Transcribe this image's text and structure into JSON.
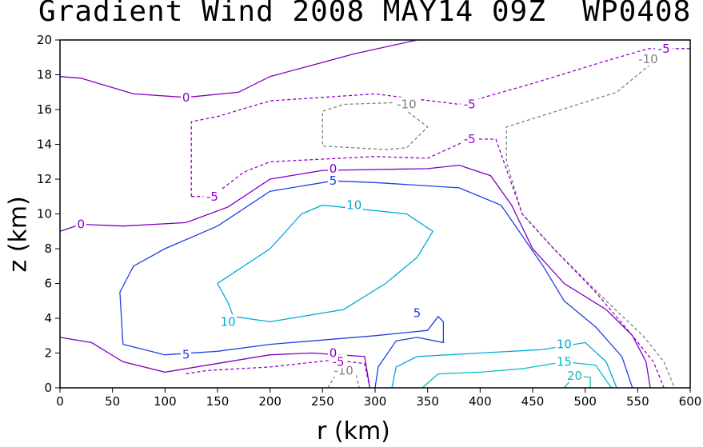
{
  "chart_data": {
    "type": "contour",
    "title": "Gradient Wind 2008 MAY14 09Z  WP0408",
    "xlabel": "r (km)",
    "ylabel": "z (km)",
    "xlim": [
      0,
      600
    ],
    "ylim": [
      0,
      20
    ],
    "xticks": [
      0,
      50,
      100,
      150,
      200,
      250,
      300,
      350,
      400,
      450,
      500,
      550,
      600
    ],
    "yticks": [
      0,
      2,
      4,
      6,
      8,
      10,
      12,
      14,
      16,
      18,
      20
    ],
    "contours": [
      {
        "level": -10,
        "color": "#808080",
        "style": "dashed",
        "label_text": "-10",
        "lines": [
          [
            [
              250,
              14
            ],
            [
              250,
              15.9
            ],
            [
              270,
              16.3
            ],
            [
              320,
              16.4
            ],
            [
              350,
              15.0
            ],
            [
              330,
              13.8
            ],
            [
              310,
              13.7
            ],
            [
              250,
              13.9
            ],
            [
              250,
              14
            ]
          ],
          [
            [
              570,
              19.5
            ],
            [
              600,
              19.5
            ]
          ],
          [
            [
              570,
              19.0
            ],
            [
              530,
              17.0
            ],
            [
              425,
              15.0
            ],
            [
              425,
              13.0
            ],
            [
              440,
              10.0
            ],
            [
              470,
              8.0
            ],
            [
              520,
              5.0
            ],
            [
              555,
              3.0
            ],
            [
              575,
              1.5
            ],
            [
              585,
              0.0
            ]
          ],
          [
            [
              255,
              0.0
            ],
            [
              265,
              1.0
            ],
            [
              280,
              1.2
            ],
            [
              285,
              0.0
            ]
          ]
        ],
        "labels": [
          {
            "x": 330,
            "y": 16.3,
            "text": "-10"
          },
          {
            "x": 560,
            "y": 18.9,
            "text": "-10"
          },
          {
            "x": 270,
            "y": 1.0,
            "text": "-10"
          }
        ]
      },
      {
        "level": -5,
        "color": "#9900cc",
        "style": "dashed",
        "label_text": "-5",
        "lines": [
          [
            [
              125,
              11.0
            ],
            [
              125,
              15.3
            ],
            [
              150,
              15.6
            ],
            [
              200,
              16.5
            ],
            [
              300,
              16.9
            ],
            [
              380,
              16.3
            ],
            [
              450,
              17.5
            ],
            [
              520,
              18.8
            ],
            [
              560,
              19.5
            ],
            [
              600,
              19.5
            ]
          ],
          [
            [
              125,
              11.0
            ],
            [
              145,
              11.0
            ],
            [
              175,
              12.4
            ],
            [
              200,
              13.0
            ],
            [
              300,
              13.3
            ],
            [
              350,
              13.2
            ],
            [
              390,
              14.3
            ],
            [
              415,
              14.3
            ],
            [
              440,
              10.0
            ],
            [
              470,
              8.0
            ],
            [
              510,
              5.5
            ],
            [
              545,
              3.0
            ],
            [
              565,
              1.5
            ],
            [
              575,
              0.0
            ]
          ],
          [
            [
              120,
              0.8
            ],
            [
              140,
              1.0
            ],
            [
              200,
              1.2
            ],
            [
              260,
              1.6
            ],
            [
              290,
              1.4
            ],
            [
              295,
              0.0
            ]
          ]
        ],
        "labels": [
          {
            "x": 145,
            "y": 11.0,
            "text": "-5"
          },
          {
            "x": 390,
            "y": 16.3,
            "text": "-5"
          },
          {
            "x": 390,
            "y": 14.3,
            "text": "-5"
          },
          {
            "x": 575,
            "y": 19.5,
            "text": "-5"
          },
          {
            "x": 265,
            "y": 1.5,
            "text": "-5"
          }
        ]
      },
      {
        "level": 0,
        "color": "#8000c0",
        "style": "solid",
        "label_text": "0",
        "lines": [
          [
            [
              0,
              17.9
            ],
            [
              20,
              17.8
            ],
            [
              70,
              16.9
            ],
            [
              120,
              16.7
            ],
            [
              170,
              17.0
            ],
            [
              200,
              17.9
            ],
            [
              280,
              19.2
            ],
            [
              340,
              20.0
            ]
          ],
          [
            [
              0,
              9.0
            ],
            [
              20,
              9.4
            ],
            [
              60,
              9.3
            ],
            [
              120,
              9.5
            ],
            [
              160,
              10.4
            ],
            [
              200,
              12.0
            ],
            [
              250,
              12.5
            ],
            [
              350,
              12.6
            ],
            [
              380,
              12.8
            ],
            [
              410,
              12.2
            ],
            [
              430,
              10.5
            ],
            [
              450,
              8.0
            ],
            [
              480,
              6.0
            ],
            [
              520,
              4.5
            ],
            [
              545,
              3.0
            ],
            [
              558,
              1.5
            ],
            [
              562,
              0.0
            ]
          ],
          [
            [
              0,
              2.9
            ],
            [
              30,
              2.6
            ],
            [
              60,
              1.5
            ],
            [
              100,
              0.9
            ],
            [
              140,
              1.3
            ],
            [
              200,
              1.9
            ],
            [
              240,
              2.0
            ],
            [
              290,
              1.8
            ],
            [
              295,
              0.0
            ]
          ]
        ],
        "labels": [
          {
            "x": 20,
            "y": 9.4,
            "text": "0"
          },
          {
            "x": 120,
            "y": 16.7,
            "text": "0"
          },
          {
            "x": 260,
            "y": 12.6,
            "text": "0"
          },
          {
            "x": 260,
            "y": 2.0,
            "text": "0"
          }
        ]
      },
      {
        "level": 5,
        "color": "#2040e0",
        "style": "solid",
        "label_text": "5",
        "lines": [
          [
            [
              100,
              1.9
            ],
            [
              60,
              2.5
            ],
            [
              57,
              5.5
            ],
            [
              70,
              7.0
            ],
            [
              100,
              8.0
            ],
            [
              150,
              9.3
            ],
            [
              200,
              11.3
            ],
            [
              260,
              11.9
            ],
            [
              300,
              11.8
            ],
            [
              380,
              11.5
            ],
            [
              420,
              10.5
            ],
            [
              460,
              7.0
            ],
            [
              480,
              5.0
            ],
            [
              510,
              3.5
            ],
            [
              535,
              1.8
            ],
            [
              545,
              0.0
            ]
          ],
          [
            [
              100,
              1.9
            ],
            [
              150,
              2.1
            ],
            [
              200,
              2.5
            ],
            [
              300,
              3.0
            ],
            [
              350,
              3.3
            ],
            [
              360,
              4.1
            ],
            [
              365,
              3.8
            ],
            [
              365,
              2.6
            ],
            [
              340,
              2.9
            ],
            [
              320,
              2.7
            ],
            [
              303,
              1.2
            ],
            [
              300,
              0.0
            ]
          ]
        ],
        "labels": [
          {
            "x": 260,
            "y": 11.9,
            "text": "5"
          },
          {
            "x": 340,
            "y": 4.3,
            "text": "5"
          },
          {
            "x": 120,
            "y": 1.9,
            "text": "5"
          }
        ]
      },
      {
        "level": 10,
        "color": "#00a8d8",
        "style": "solid",
        "label_text": "10",
        "lines": [
          [
            [
              160,
              4.9
            ],
            [
              165,
              4.1
            ],
            [
              200,
              3.8
            ],
            [
              270,
              4.5
            ],
            [
              310,
              6.0
            ],
            [
              340,
              7.5
            ],
            [
              355,
              9.0
            ],
            [
              330,
              10.0
            ],
            [
              250,
              10.5
            ],
            [
              230,
              10.0
            ],
            [
              200,
              8.0
            ],
            [
              150,
              6.0
            ],
            [
              160,
              4.9
            ]
          ],
          [
            [
              316,
              0.0
            ],
            [
              320,
              1.2
            ],
            [
              340,
              1.8
            ],
            [
              400,
              2.0
            ],
            [
              460,
              2.2
            ],
            [
              500,
              2.6
            ],
            [
              520,
              1.5
            ],
            [
              530,
              0.0
            ]
          ]
        ],
        "labels": [
          {
            "x": 280,
            "y": 10.5,
            "text": "10"
          },
          {
            "x": 160,
            "y": 3.8,
            "text": "10"
          },
          {
            "x": 480,
            "y": 2.5,
            "text": "10"
          }
        ]
      },
      {
        "level": 15,
        "color": "#00c0c0",
        "style": "solid",
        "label_text": "15",
        "lines": [
          [
            [
              345,
              0.0
            ],
            [
              360,
              0.8
            ],
            [
              400,
              0.9
            ],
            [
              440,
              1.1
            ],
            [
              480,
              1.5
            ],
            [
              510,
              1.3
            ],
            [
              525,
              0.0
            ]
          ]
        ],
        "labels": [
          {
            "x": 480,
            "y": 1.5,
            "text": "15"
          }
        ]
      },
      {
        "level": 20,
        "color": "#20b8b0",
        "style": "solid",
        "label_text": "20",
        "lines": [
          [
            [
              480,
              0.0
            ],
            [
              490,
              0.7
            ],
            [
              505,
              0.6
            ],
            [
              505,
              0.0
            ]
          ]
        ],
        "labels": [
          {
            "x": 490,
            "y": 0.7,
            "text": "20"
          }
        ]
      }
    ]
  }
}
